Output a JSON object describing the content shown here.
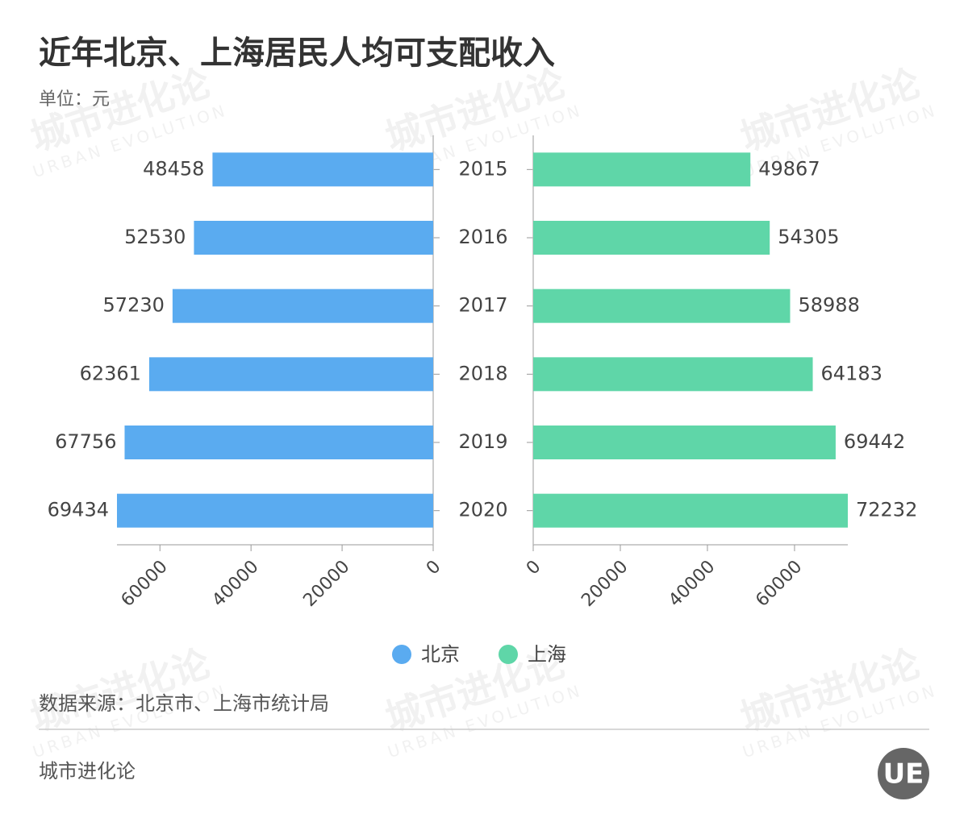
{
  "chart_data": {
    "type": "butterfly",
    "title": "近年北京、上海居民人均可支配收入",
    "subtitle": "单位：元",
    "categories": [
      "2015",
      "2016",
      "2017",
      "2018",
      "2019",
      "2020"
    ],
    "series": [
      {
        "name": "北京",
        "color": "#5aabf0",
        "values": [
          48458,
          52530,
          57230,
          62361,
          67756,
          69434
        ],
        "xlim": [
          0,
          69434
        ],
        "xticks": [
          0,
          20000,
          40000,
          60000
        ]
      },
      {
        "name": "上海",
        "color": "#5fd6a8",
        "values": [
          49867,
          54305,
          58988,
          64183,
          69442,
          72232
        ],
        "xlim": [
          0,
          72232
        ],
        "xticks": [
          0,
          20000,
          40000,
          60000
        ]
      }
    ],
    "source": "数据来源：北京市、上海市统计局",
    "footer": "城市进化论",
    "logo": "UE",
    "watermark": {
      "cn": "城市进化论",
      "en": "URBAN EVOLUTION"
    }
  }
}
